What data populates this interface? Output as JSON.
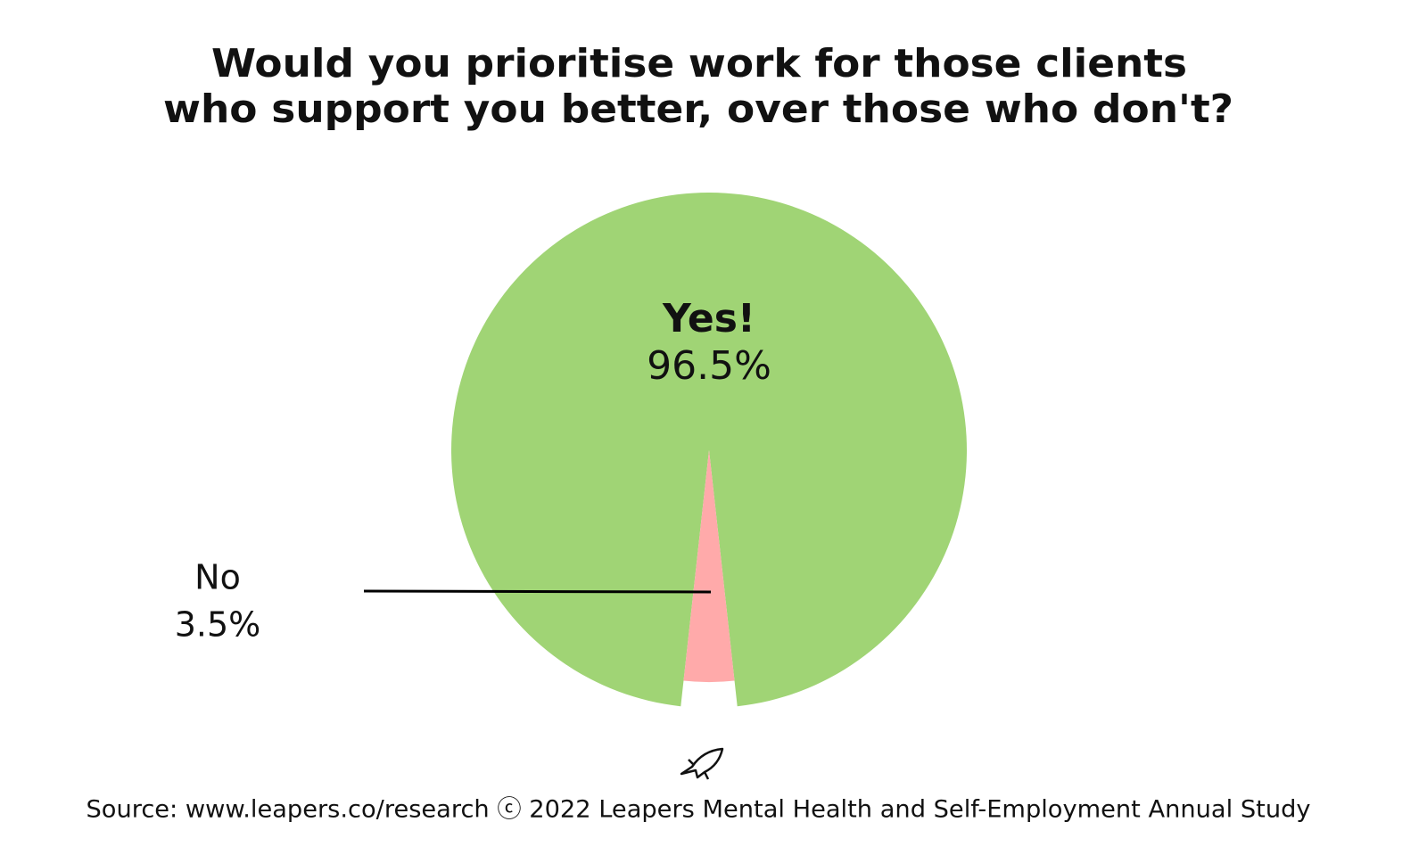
{
  "chart_data": {
    "type": "pie",
    "title": [
      "Would you prioritise work for those clients",
      "who support you better, over those who don't?"
    ],
    "categories": [
      "Yes!",
      "No"
    ],
    "values": [
      96.5,
      3.5
    ],
    "value_labels": [
      "96.5%",
      "3.5%"
    ],
    "colors": [
      "#a0d475",
      "#ffaaaa"
    ],
    "source": "Source: www.leapers.co/research ⓒ 2022 Leapers Mental Health and Self-Employment Annual Study"
  }
}
